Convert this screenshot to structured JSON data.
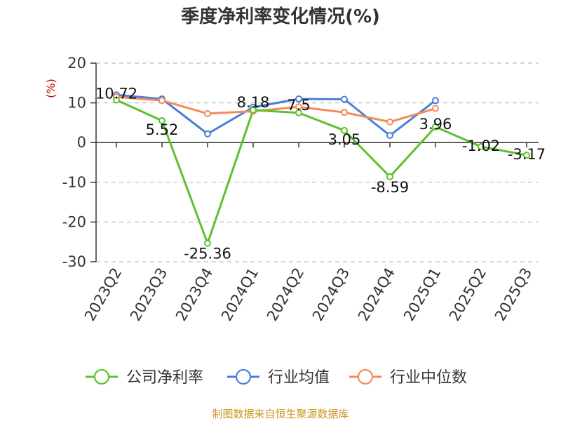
{
  "chart_data": {
    "type": "line",
    "title": "季度净利率变化情况(%)",
    "ylabel": "(%)",
    "ylim": [
      -30,
      20
    ],
    "yticks": [
      20,
      10,
      0,
      -10,
      -20,
      -30
    ],
    "grid": true,
    "legend_position": "bottom",
    "categories": [
      "2023Q2",
      "2023Q3",
      "2023Q4",
      "2024Q1",
      "2024Q2",
      "2024Q3",
      "2024Q4",
      "2025Q1",
      "2025Q2",
      "2025Q3"
    ],
    "series": [
      {
        "name": "公司净利率",
        "color": "#5cc22c",
        "values": [
          10.72,
          5.52,
          -25.36,
          8.18,
          7.5,
          3.05,
          -8.59,
          3.96,
          -1.02,
          -3.17
        ],
        "labels": [
          "10.72",
          "5.52",
          "-25.36",
          "8.18",
          "7.5",
          "3.05",
          "-8.59",
          "3.96",
          "-1.02",
          "-3.17"
        ]
      },
      {
        "name": "行业均值",
        "color": "#4a7fd9",
        "values": [
          12.0,
          11.0,
          2.2,
          8.9,
          11.0,
          10.9,
          1.8,
          10.6,
          null,
          null
        ]
      },
      {
        "name": "行业中位数",
        "color": "#f28b5c",
        "values": [
          11.5,
          10.6,
          7.3,
          7.9,
          9.0,
          7.6,
          5.2,
          8.6,
          null,
          null
        ]
      }
    ]
  },
  "source": "制图数据来自恒生聚源数据库"
}
